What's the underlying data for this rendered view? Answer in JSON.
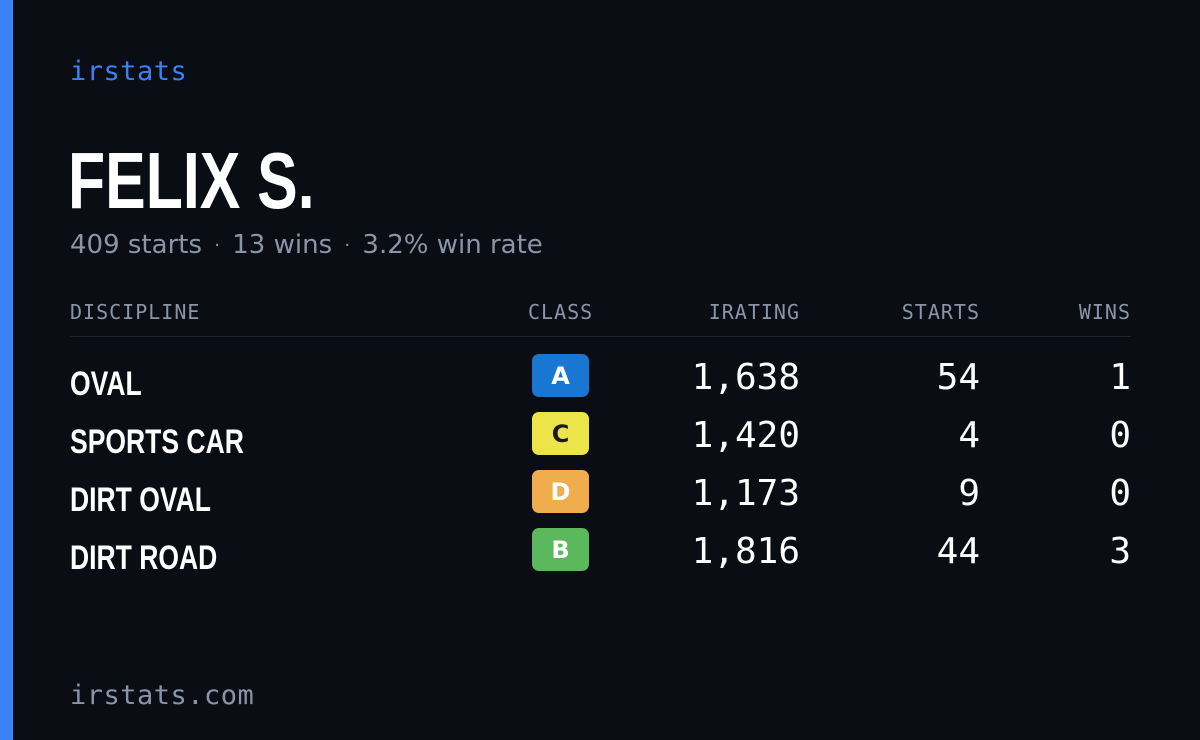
{
  "brand": "irstats",
  "driver": {
    "name": "FELIX S.",
    "starts_text": "409 starts",
    "wins_text": "13 wins",
    "win_rate_text": "3.2% win rate",
    "separator": "·"
  },
  "table": {
    "headers": {
      "discipline": "DISCIPLINE",
      "class": "CLASS",
      "irating": "IRATING",
      "starts": "STARTS",
      "wins": "WINS"
    },
    "rows": [
      {
        "discipline": "OVAL",
        "class": "A",
        "class_color": "#1976d2",
        "class_text_color": "#ffffff",
        "irating": "1,638",
        "starts": "54",
        "wins": "1"
      },
      {
        "discipline": "SPORTS CAR",
        "class": "C",
        "class_color": "#ece54a",
        "class_text_color": "#1a1a1a",
        "irating": "1,420",
        "starts": "4",
        "wins": "0"
      },
      {
        "discipline": "DIRT OVAL",
        "class": "D",
        "class_color": "#f0ad4e",
        "class_text_color": "#ffffff",
        "irating": "1,173",
        "starts": "9",
        "wins": "0"
      },
      {
        "discipline": "DIRT ROAD",
        "class": "B",
        "class_color": "#5cb85c",
        "class_text_color": "#ffffff",
        "irating": "1,816",
        "starts": "44",
        "wins": "3"
      }
    ]
  },
  "footer": {
    "url": "irstats.com"
  },
  "colors": {
    "background": "#0a0d14",
    "accent": "#3b82f6",
    "muted_text": "#8b95a7"
  }
}
